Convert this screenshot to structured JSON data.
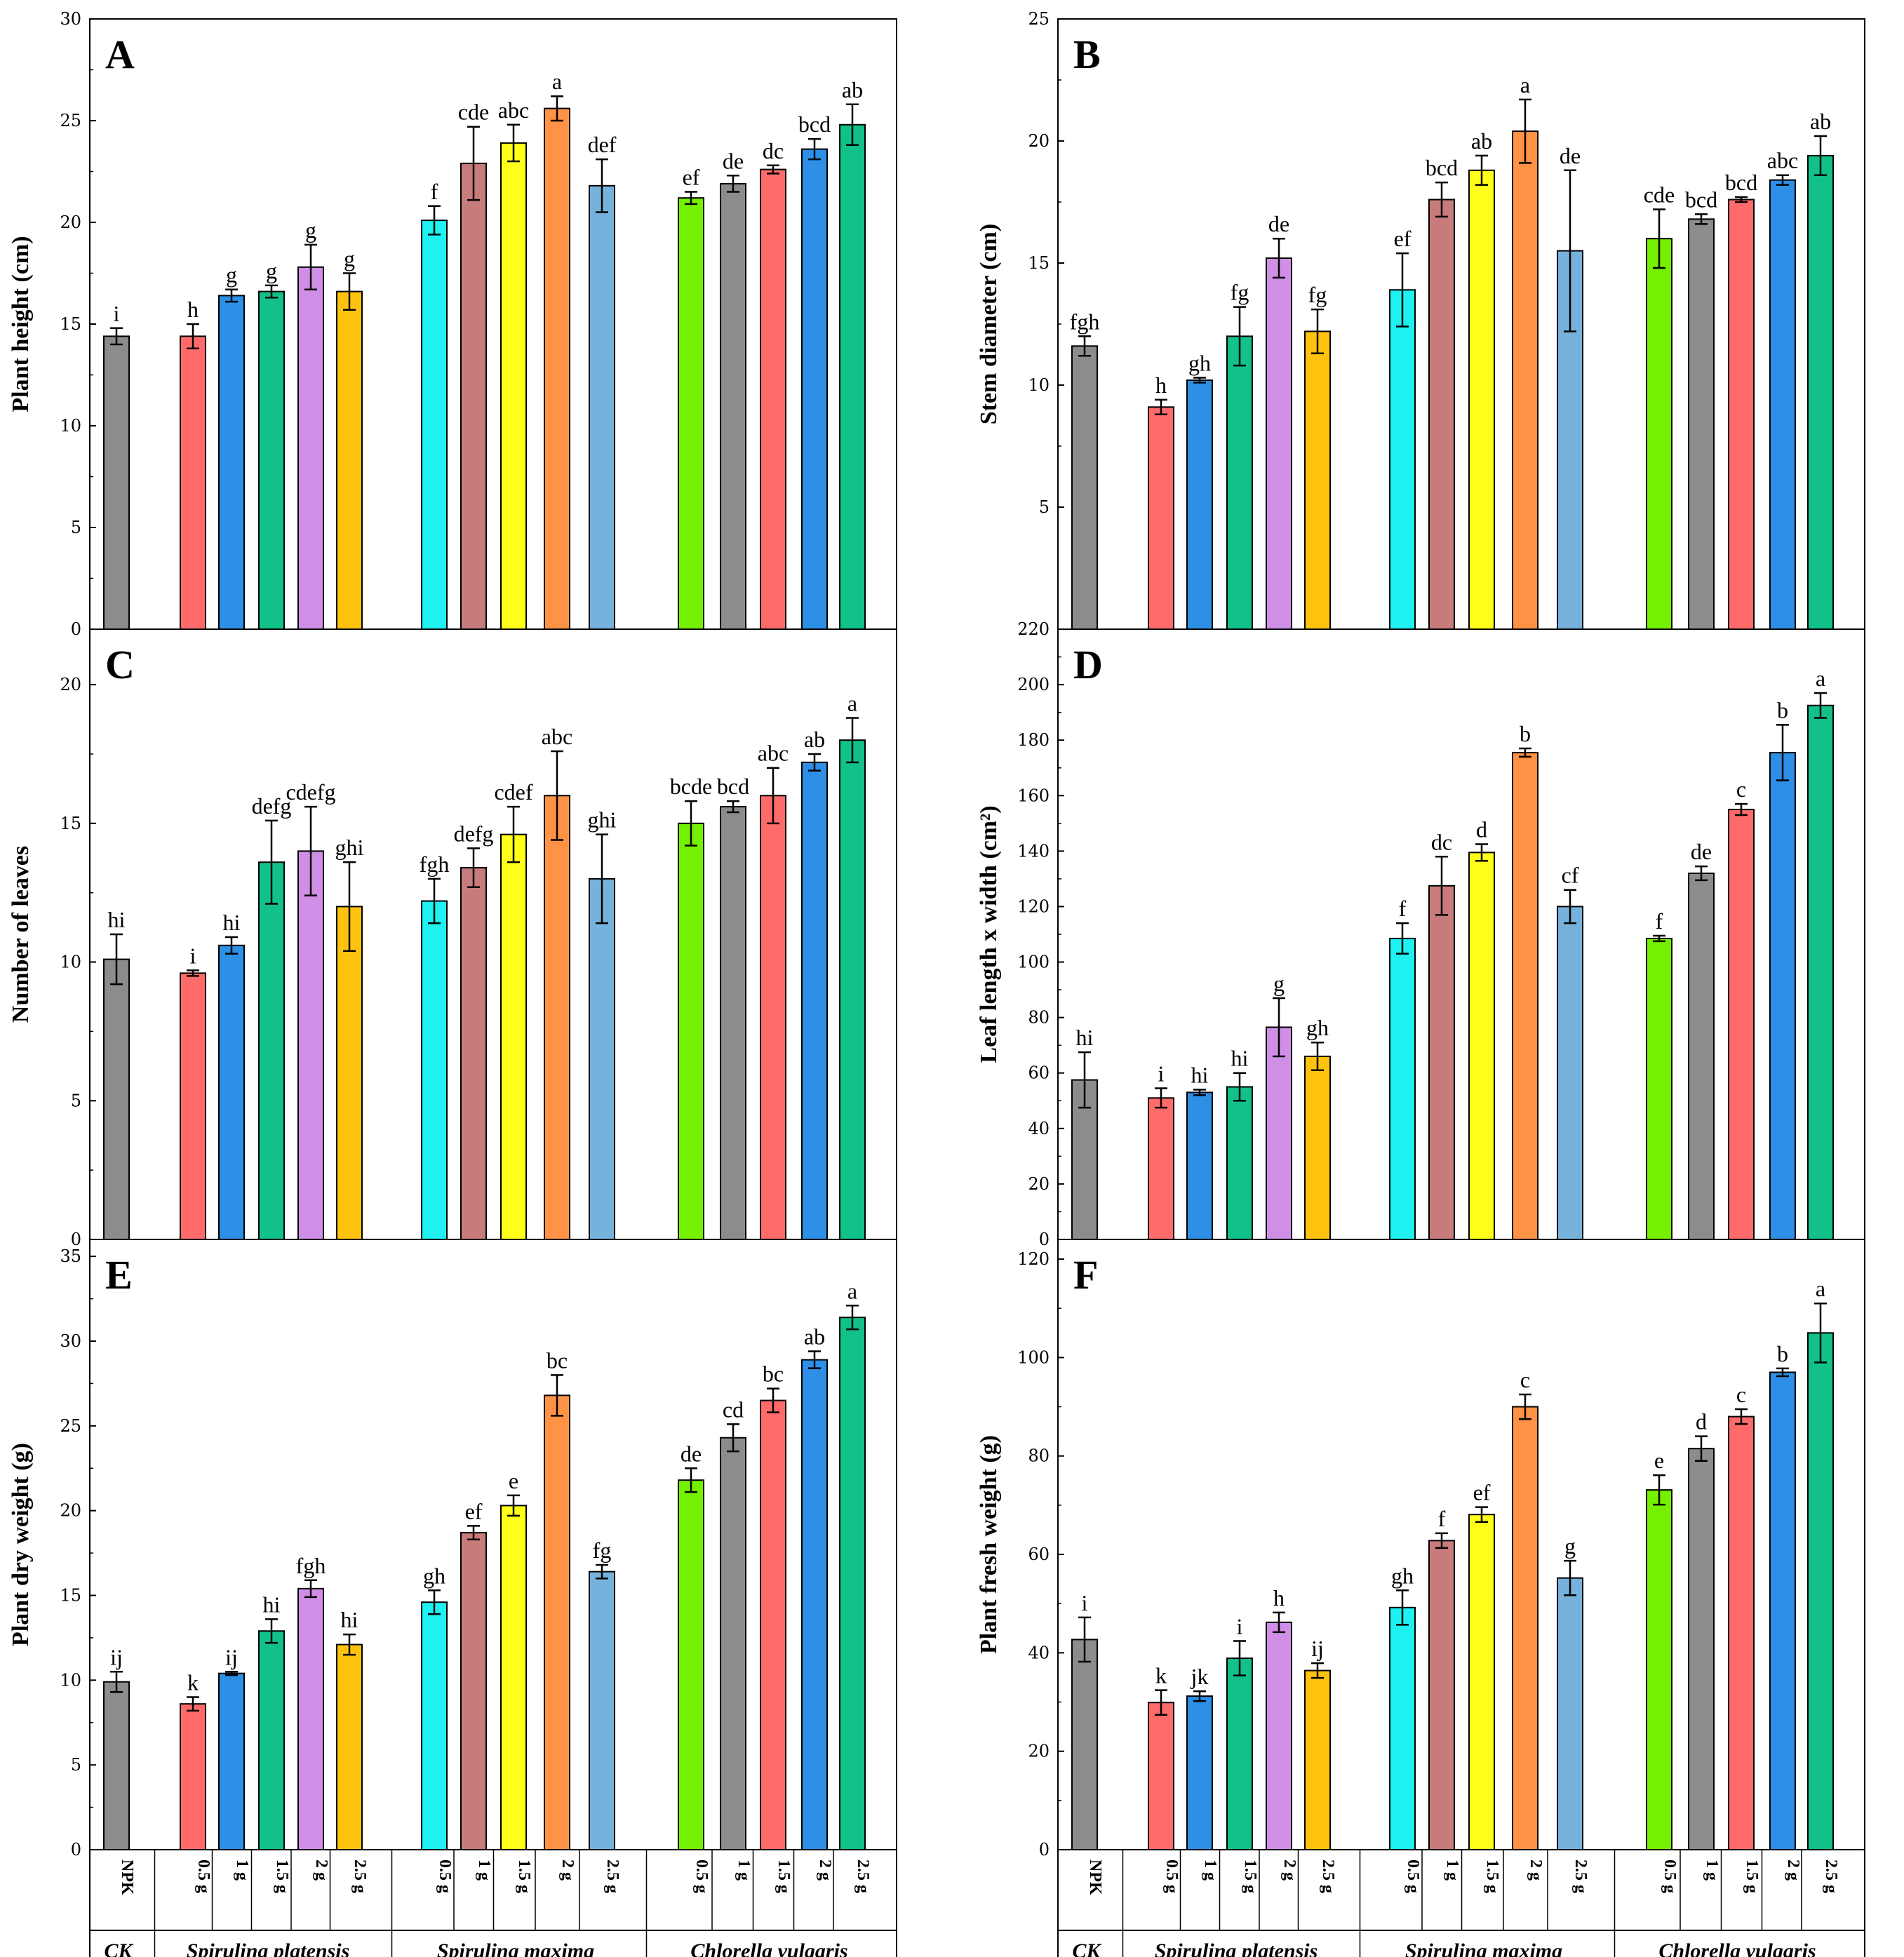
{
  "categories": [
    "NPK",
    "0.5 g",
    "1 g",
    "1.5 g",
    "2 g",
    "2.5 g",
    "0.5 g",
    "1 g",
    "1.5 g",
    "2 g",
    "2.5 g",
    "0.5 g",
    "1 g",
    "1.5 g",
    "2 g",
    "2.5 g"
  ],
  "groups": [
    {
      "name": "CK",
      "italic": true
    },
    {
      "name": "Spirulina platensis",
      "italic": true
    },
    {
      "name": "Spirulina maxima",
      "italic": true
    },
    {
      "name": "Chlorella vulgaris",
      "italic": true
    }
  ],
  "colors": [
    "#8c8c8c",
    "#ff6b6b",
    "#2e8fe6",
    "#12c08a",
    "#d08fe6",
    "#ffc30f",
    "#1ff0f0",
    "#c77b7b",
    "#ffff1a",
    "#ff9244",
    "#77b2dd",
    "#74f000",
    "#8c8c8c",
    "#ff6b6b",
    "#2e8fe6",
    "#12c08a"
  ],
  "chart_data": [
    {
      "type": "bar",
      "panel": "A",
      "ylabel": "Plant height (cm)",
      "ylim": [
        0,
        30
      ],
      "yticks": [
        0,
        5,
        10,
        15,
        20,
        25,
        30
      ],
      "values": [
        14.4,
        14.4,
        16.4,
        16.6,
        17.8,
        16.6,
        20.1,
        22.9,
        23.9,
        25.6,
        21.8,
        21.2,
        21.9,
        22.6,
        23.6,
        24.8
      ],
      "errors": [
        0.4,
        0.6,
        0.3,
        0.3,
        1.1,
        0.9,
        0.7,
        1.8,
        0.9,
        0.6,
        1.3,
        0.3,
        0.4,
        0.2,
        0.5,
        1.0
      ],
      "letters": [
        "i",
        "h",
        "g",
        "g",
        "g",
        "g",
        "f",
        "cde",
        "abc",
        "a",
        "def",
        "ef",
        "de",
        "dc",
        "bcd",
        "ab"
      ]
    },
    {
      "type": "bar",
      "panel": "B",
      "ylabel": "Stem diameter (cm)",
      "ylim": [
        0,
        25
      ],
      "yticks": [
        5,
        10,
        15,
        20,
        25
      ],
      "values": [
        11.6,
        9.1,
        10.2,
        12.0,
        15.2,
        12.2,
        13.9,
        17.6,
        18.8,
        20.4,
        15.5,
        16.0,
        16.8,
        17.6,
        18.4,
        19.4
      ],
      "errors": [
        0.4,
        0.3,
        0.1,
        1.2,
        0.8,
        0.9,
        1.5,
        0.7,
        0.6,
        1.3,
        3.3,
        1.2,
        0.2,
        0.1,
        0.2,
        0.8
      ],
      "letters": [
        "fgh",
        "h",
        "gh",
        "fg",
        "de",
        "fg",
        "ef",
        "bcd",
        "ab",
        "a",
        "de",
        "cde",
        "bcd",
        "bcd",
        "abc",
        "ab"
      ]
    },
    {
      "type": "bar",
      "panel": "C",
      "ylabel": "Number of leaves",
      "ylim": [
        0,
        22
      ],
      "yticks": [
        0,
        5,
        10,
        15,
        20
      ],
      "values": [
        10.1,
        9.6,
        10.6,
        13.6,
        14.0,
        12.0,
        12.2,
        13.4,
        14.6,
        16.0,
        13.0,
        15.0,
        15.6,
        16.0,
        17.2,
        18.0
      ],
      "errors": [
        0.9,
        0.1,
        0.3,
        1.5,
        1.6,
        1.6,
        0.8,
        0.7,
        1.0,
        1.6,
        1.6,
        0.8,
        0.2,
        1.0,
        0.3,
        0.8
      ],
      "letters": [
        "hi",
        "i",
        "hi",
        "defg",
        "cdefg",
        "ghi",
        "fgh",
        "defg",
        "cdef",
        "abc",
        "ghi",
        "bcde",
        "bcd",
        "abc",
        "ab",
        "a"
      ]
    },
    {
      "type": "bar",
      "panel": "D",
      "ylabel": "Leaf length x width (cm²)",
      "ylim": [
        0,
        220
      ],
      "yticks": [
        0,
        20,
        40,
        60,
        80,
        100,
        120,
        140,
        160,
        180,
        200,
        220
      ],
      "values": [
        57.5,
        51.0,
        53.0,
        55.0,
        76.5,
        66.0,
        108.5,
        127.5,
        139.5,
        175.5,
        120.0,
        108.5,
        132.0,
        155.0,
        175.5,
        192.5
      ],
      "errors": [
        10.0,
        3.5,
        1.0,
        5.0,
        10.5,
        5.0,
        5.5,
        10.5,
        3.0,
        1.5,
        6.0,
        1.0,
        2.5,
        2.0,
        10.0,
        4.5
      ],
      "letters": [
        "hi",
        "i",
        "hi",
        "hi",
        "g",
        "gh",
        "f",
        "dc",
        "d",
        "b",
        "cf",
        "f",
        "de",
        "c",
        "b",
        "a"
      ]
    },
    {
      "type": "bar",
      "panel": "E",
      "ylabel": "Plant dry weight (g)",
      "ylim": [
        0,
        36
      ],
      "yticks": [
        0,
        5,
        10,
        15,
        20,
        25,
        30,
        35
      ],
      "values": [
        9.9,
        8.6,
        10.4,
        12.9,
        15.4,
        12.1,
        14.6,
        18.7,
        20.3,
        26.8,
        16.4,
        21.8,
        24.3,
        26.5,
        28.9,
        31.4
      ],
      "errors": [
        0.6,
        0.4,
        0.1,
        0.7,
        0.5,
        0.6,
        0.7,
        0.4,
        0.6,
        1.2,
        0.4,
        0.7,
        0.8,
        0.7,
        0.5,
        0.7
      ],
      "letters": [
        "ij",
        "k",
        "ij",
        "hi",
        "fgh",
        "hi",
        "gh",
        "ef",
        "e",
        "bc",
        "fg",
        "de",
        "cd",
        "bc",
        "ab",
        "a"
      ]
    },
    {
      "type": "bar",
      "panel": "F",
      "ylabel": "Plant fresh weight (g)",
      "ylim": [
        0,
        124
      ],
      "yticks": [
        0,
        20,
        40,
        60,
        80,
        100,
        120
      ],
      "values": [
        42.7,
        29.9,
        31.2,
        38.9,
        46.2,
        36.4,
        49.2,
        62.8,
        68.1,
        90.0,
        55.2,
        73.1,
        81.5,
        88.0,
        97.0,
        105.0
      ],
      "errors": [
        4.5,
        2.5,
        1.0,
        3.5,
        2.0,
        1.5,
        3.5,
        1.5,
        1.5,
        2.5,
        3.5,
        3.0,
        2.5,
        1.5,
        0.8,
        6.0
      ],
      "letters": [
        "i",
        "k",
        "jk",
        "i",
        "h",
        "ij",
        "gh",
        "f",
        "ef",
        "c",
        "g",
        "e",
        "d",
        "c",
        "b",
        "a"
      ]
    }
  ]
}
